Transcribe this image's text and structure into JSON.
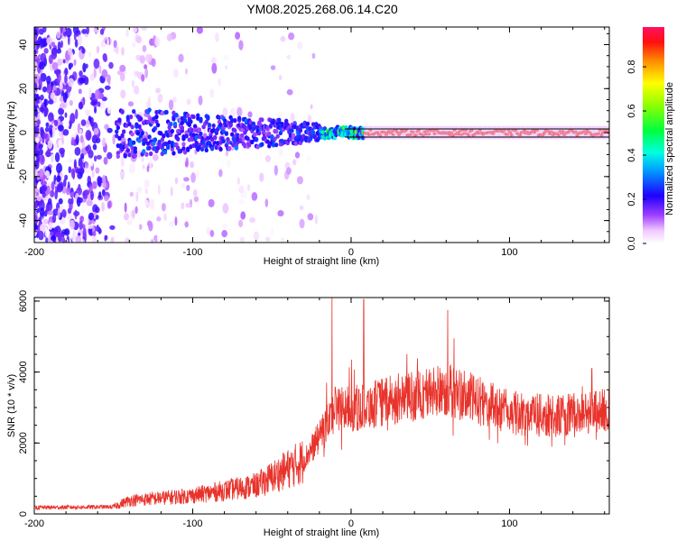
{
  "figure_title": "YM08.2025.268.06.14.C20",
  "chart_data": [
    {
      "type": "heatmap",
      "title": "YM08.2025.268.06.14.C20",
      "xlabel": "Height of straight line (km)",
      "ylabel": "Frequency (Hz)",
      "xlim": [
        -200,
        163
      ],
      "ylim": [
        -50,
        48
      ],
      "xticks": [
        -200,
        -100,
        0,
        100
      ],
      "xtick_labels": [
        "-200",
        "-100",
        "0",
        "100"
      ],
      "yticks": [
        -40,
        -20,
        0,
        20,
        40
      ],
      "ytick_labels": [
        "-40",
        "-20",
        "0",
        "20",
        "40"
      ],
      "colorbar": {
        "label": "Normalized spectral amplitude",
        "range": [
          0,
          0.98
        ],
        "ticks": [
          0.0,
          0.2,
          0.4,
          0.6,
          0.8
        ],
        "tick_labels": [
          "0.0",
          "0.2",
          "0.4",
          "0.6",
          "0.8"
        ],
        "colormap": "rainbow (white-magenta-blue-cyan-green-yellow-red)"
      },
      "band_center_hz": 0,
      "noise_onset_km": -150
    },
    {
      "type": "line",
      "xlabel": "Height of straight line (km)",
      "ylabel": "SNR (10 * v/v)",
      "xlim": [
        -200,
        163
      ],
      "ylim": [
        0,
        6100
      ],
      "xticks": [
        -200,
        -100,
        0,
        100
      ],
      "xtick_labels": [
        "-200",
        "-100",
        "0",
        "100"
      ],
      "yticks": [
        0,
        2000,
        4000,
        6000
      ],
      "ytick_labels": [
        "0",
        "2000",
        "4000",
        "6000"
      ],
      "line_color": "#e8332b",
      "trend": {
        "x": [
          -200,
          -150,
          -140,
          -100,
          -60,
          -30,
          -15,
          -10,
          0,
          30,
          60,
          80,
          100,
          130,
          163
        ],
        "y": [
          180,
          200,
          380,
          520,
          800,
          1500,
          2500,
          3000,
          2950,
          3250,
          3500,
          3200,
          2850,
          2750,
          2950
        ]
      },
      "peaks": [
        {
          "x": -12,
          "y": 6100
        },
        {
          "x": 8,
          "y": 6050
        },
        {
          "x": 61,
          "y": 5750
        },
        {
          "x": 65,
          "y": 4950
        },
        {
          "x": 152,
          "y": 4100
        }
      ]
    }
  ]
}
